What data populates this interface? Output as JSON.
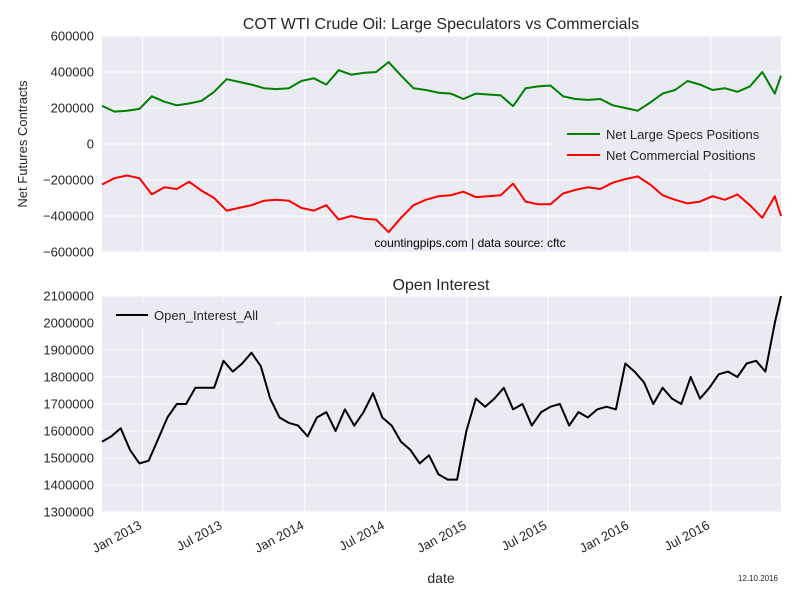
{
  "figure": {
    "xlabel": "date",
    "footnote_date": "12.10.2016",
    "x_ticks": [
      {
        "date": "2013-01-01",
        "label": "Jan 2013"
      },
      {
        "date": "2013-07-01",
        "label": "Jul 2013"
      },
      {
        "date": "2014-01-01",
        "label": "Jan 2014"
      },
      {
        "date": "2014-07-01",
        "label": "Jul 2014"
      },
      {
        "date": "2015-01-01",
        "label": "Jan 2015"
      },
      {
        "date": "2015-07-01",
        "label": "Jul 2015"
      },
      {
        "date": "2016-01-01",
        "label": "Jan 2016"
      },
      {
        "date": "2016-07-01",
        "label": "Jul 2016"
      }
    ],
    "xlim": [
      "2012-10-02",
      "2016-12-06"
    ]
  },
  "chart_data": [
    {
      "type": "line",
      "title": "COT WTI Crude Oil: Large Speculators vs Commercials",
      "ylabel": "Net Futures Contracts",
      "annotation": "countingpips.com | data source: cftc",
      "ylim": [
        -600000,
        600000
      ],
      "y_ticks": [
        -600000,
        -400000,
        -200000,
        0,
        200000,
        400000,
        600000
      ],
      "y_tick_labels": [
        "−600000",
        "−400000",
        "−200000",
        "0",
        "200000",
        "400000",
        "600000"
      ],
      "grid": true,
      "legend_position": "center-right",
      "series": [
        {
          "name": "Net Large Specs Positions",
          "color": "#008000",
          "x": [
            "2012-10-02",
            "2012-10-30",
            "2012-11-27",
            "2012-12-25",
            "2013-01-22",
            "2013-02-19",
            "2013-03-19",
            "2013-04-16",
            "2013-05-14",
            "2013-06-11",
            "2013-07-09",
            "2013-08-06",
            "2013-09-03",
            "2013-10-01",
            "2013-10-29",
            "2013-11-26",
            "2013-12-24",
            "2014-01-21",
            "2014-02-18",
            "2014-03-18",
            "2014-04-15",
            "2014-05-13",
            "2014-06-10",
            "2014-07-08",
            "2014-08-05",
            "2014-09-02",
            "2014-09-30",
            "2014-10-28",
            "2014-11-25",
            "2014-12-23",
            "2015-01-20",
            "2015-02-17",
            "2015-03-17",
            "2015-04-14",
            "2015-05-12",
            "2015-06-09",
            "2015-07-07",
            "2015-08-04",
            "2015-09-01",
            "2015-09-29",
            "2015-10-27",
            "2015-11-24",
            "2015-12-22",
            "2016-01-19",
            "2016-02-16",
            "2016-03-15",
            "2016-04-12",
            "2016-05-10",
            "2016-06-07",
            "2016-07-05",
            "2016-08-02",
            "2016-08-30",
            "2016-09-27",
            "2016-10-25",
            "2016-11-22",
            "2016-12-06"
          ],
          "values": [
            212000,
            180000,
            185000,
            195000,
            265000,
            235000,
            215000,
            225000,
            240000,
            290000,
            360000,
            345000,
            330000,
            310000,
            305000,
            310000,
            350000,
            365000,
            330000,
            410000,
            385000,
            395000,
            400000,
            455000,
            380000,
            310000,
            300000,
            285000,
            280000,
            250000,
            280000,
            275000,
            270000,
            210000,
            310000,
            320000,
            325000,
            265000,
            250000,
            245000,
            250000,
            215000,
            200000,
            185000,
            230000,
            280000,
            300000,
            350000,
            330000,
            300000,
            310000,
            290000,
            320000,
            400000,
            280000,
            380000
          ]
        },
        {
          "name": "Net Commercial Positions",
          "color": "#ff0000",
          "x": [
            "2012-10-02",
            "2012-10-30",
            "2012-11-27",
            "2012-12-25",
            "2013-01-22",
            "2013-02-19",
            "2013-03-19",
            "2013-04-16",
            "2013-05-14",
            "2013-06-11",
            "2013-07-09",
            "2013-08-06",
            "2013-09-03",
            "2013-10-01",
            "2013-10-29",
            "2013-11-26",
            "2013-12-24",
            "2014-01-21",
            "2014-02-18",
            "2014-03-18",
            "2014-04-15",
            "2014-05-13",
            "2014-06-10",
            "2014-07-08",
            "2014-08-05",
            "2014-09-02",
            "2014-09-30",
            "2014-10-28",
            "2014-11-25",
            "2014-12-23",
            "2015-01-20",
            "2015-02-17",
            "2015-03-17",
            "2015-04-14",
            "2015-05-12",
            "2015-06-09",
            "2015-07-07",
            "2015-08-04",
            "2015-09-01",
            "2015-09-29",
            "2015-10-27",
            "2015-11-24",
            "2015-12-22",
            "2016-01-19",
            "2016-02-16",
            "2016-03-15",
            "2016-04-12",
            "2016-05-10",
            "2016-06-07",
            "2016-07-05",
            "2016-08-02",
            "2016-08-30",
            "2016-09-27",
            "2016-10-25",
            "2016-11-22",
            "2016-12-06"
          ],
          "values": [
            -225000,
            -190000,
            -175000,
            -190000,
            -280000,
            -240000,
            -250000,
            -210000,
            -260000,
            -300000,
            -370000,
            -355000,
            -340000,
            -315000,
            -310000,
            -315000,
            -355000,
            -370000,
            -340000,
            -420000,
            -400000,
            -415000,
            -420000,
            -490000,
            -410000,
            -340000,
            -310000,
            -290000,
            -285000,
            -265000,
            -295000,
            -290000,
            -285000,
            -220000,
            -320000,
            -335000,
            -335000,
            -275000,
            -255000,
            -240000,
            -250000,
            -215000,
            -195000,
            -180000,
            -225000,
            -285000,
            -310000,
            -330000,
            -320000,
            -290000,
            -310000,
            -280000,
            -340000,
            -410000,
            -290000,
            -400000
          ]
        }
      ]
    },
    {
      "type": "line",
      "title": "Open Interest",
      "ylabel": "",
      "ylim": [
        1300000,
        2100000
      ],
      "y_ticks": [
        1300000,
        1400000,
        1500000,
        1600000,
        1700000,
        1800000,
        1900000,
        2000000,
        2100000
      ],
      "y_tick_labels": [
        "1300000",
        "1400000",
        "1500000",
        "1600000",
        "1700000",
        "1800000",
        "1900000",
        "2000000",
        "2100000"
      ],
      "grid": true,
      "legend_position": "top-left",
      "series": [
        {
          "name": "Open_Interest_All",
          "color": "#000000",
          "x": [
            "2012-10-02",
            "2012-10-23",
            "2012-11-13",
            "2012-12-04",
            "2012-12-25",
            "2013-01-15",
            "2013-02-05",
            "2013-02-26",
            "2013-03-19",
            "2013-04-09",
            "2013-04-30",
            "2013-05-21",
            "2013-06-11",
            "2013-07-02",
            "2013-07-23",
            "2013-08-13",
            "2013-09-03",
            "2013-09-24",
            "2013-10-15",
            "2013-11-05",
            "2013-11-26",
            "2013-12-17",
            "2014-01-07",
            "2014-01-28",
            "2014-02-18",
            "2014-03-11",
            "2014-04-01",
            "2014-04-22",
            "2014-05-13",
            "2014-06-03",
            "2014-06-24",
            "2014-07-15",
            "2014-08-05",
            "2014-08-26",
            "2014-09-16",
            "2014-10-07",
            "2014-10-28",
            "2014-11-18",
            "2014-12-09",
            "2014-12-30",
            "2015-01-20",
            "2015-02-10",
            "2015-03-03",
            "2015-03-24",
            "2015-04-14",
            "2015-05-05",
            "2015-05-26",
            "2015-06-16",
            "2015-07-07",
            "2015-07-28",
            "2015-08-18",
            "2015-09-08",
            "2015-09-29",
            "2015-10-20",
            "2015-11-10",
            "2015-12-01",
            "2015-12-22",
            "2016-01-12",
            "2016-02-02",
            "2016-02-23",
            "2016-03-15",
            "2016-04-05",
            "2016-04-26",
            "2016-05-17",
            "2016-06-07",
            "2016-06-28",
            "2016-07-19",
            "2016-08-09",
            "2016-08-30",
            "2016-09-20",
            "2016-10-11",
            "2016-11-01",
            "2016-11-22",
            "2016-12-06"
          ],
          "values": [
            1560000,
            1580000,
            1610000,
            1530000,
            1480000,
            1490000,
            1570000,
            1650000,
            1700000,
            1700000,
            1760000,
            1760000,
            1760000,
            1860000,
            1820000,
            1850000,
            1890000,
            1840000,
            1720000,
            1650000,
            1630000,
            1620000,
            1580000,
            1650000,
            1670000,
            1600000,
            1680000,
            1620000,
            1670000,
            1740000,
            1650000,
            1620000,
            1560000,
            1530000,
            1480000,
            1510000,
            1440000,
            1420000,
            1420000,
            1600000,
            1720000,
            1690000,
            1720000,
            1760000,
            1680000,
            1700000,
            1620000,
            1670000,
            1690000,
            1700000,
            1620000,
            1670000,
            1650000,
            1680000,
            1690000,
            1680000,
            1850000,
            1820000,
            1780000,
            1700000,
            1760000,
            1720000,
            1700000,
            1800000,
            1720000,
            1760000,
            1810000,
            1820000,
            1800000,
            1850000,
            1860000,
            1820000,
            2000000,
            2100000
          ]
        }
      ]
    }
  ]
}
